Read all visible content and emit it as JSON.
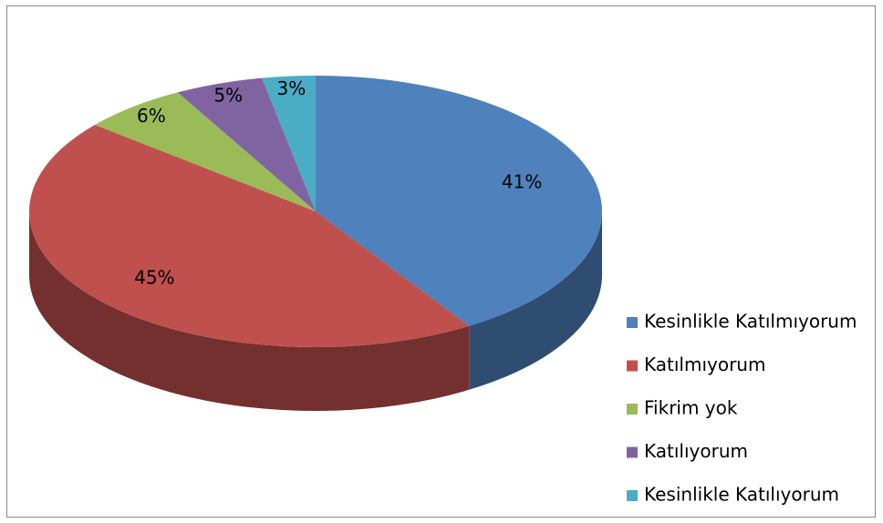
{
  "chart_data": {
    "type": "pie3d",
    "categories": [
      "Kesinlikle Katılmıyorum",
      "Katılmıyorum",
      "Fikrim yok",
      "Katılıyorum",
      "Kesinlikle Katılıyorum"
    ],
    "values": [
      41,
      45,
      6,
      5,
      3
    ],
    "value_labels": [
      "41%",
      "45%",
      "6%",
      "5%",
      "3%"
    ],
    "colors": [
      "#4f81bd",
      "#c0504d",
      "#9bbb59",
      "#8064a2",
      "#4bacc6"
    ],
    "legend": "right"
  }
}
